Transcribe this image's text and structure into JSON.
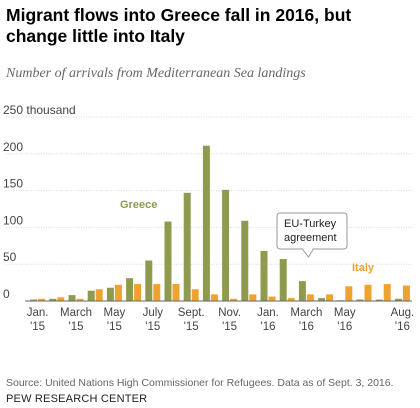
{
  "chart_data": {
    "type": "bar",
    "title": "Migrant flows into Greece fall in 2016, but change little into Italy",
    "subtitle": "Number of arrivals from Mediterranean Sea landings",
    "unit_label": "250 thousand",
    "ylim": [
      0,
      250
    ],
    "yticks": [
      0,
      50,
      100,
      150,
      200,
      250
    ],
    "ytick_labels": [
      "0",
      "50",
      "100",
      "150",
      "200",
      "250 thousand"
    ],
    "categories": [
      "Jan 2015",
      "Feb 2015",
      "Mar 2015",
      "Apr 2015",
      "May 2015",
      "Jun 2015",
      "Jul 2015",
      "Aug 2015",
      "Sep 2015",
      "Oct 2015",
      "Nov 2015",
      "Dec 2015",
      "Jan 2016",
      "Feb 2016",
      "Mar 2016",
      "Apr 2016",
      "May 2016",
      "Jun 2016",
      "Jul 2016",
      "Aug 2016"
    ],
    "x_tick_labels": [
      {
        "index": 0,
        "line1": "Jan.",
        "line2": "'15"
      },
      {
        "index": 2,
        "line1": "March",
        "line2": "'15"
      },
      {
        "index": 4,
        "line1": "May",
        "line2": "'15"
      },
      {
        "index": 6,
        "line1": "July",
        "line2": "'15"
      },
      {
        "index": 8,
        "line1": "Sept.",
        "line2": "'15"
      },
      {
        "index": 10,
        "line1": "Nov.",
        "line2": "'15"
      },
      {
        "index": 12,
        "line1": "Jan.",
        "line2": "'16"
      },
      {
        "index": 14,
        "line1": "March",
        "line2": "'16"
      },
      {
        "index": 16,
        "line1": "May",
        "line2": "'16"
      },
      {
        "index": 19,
        "line1": "Aug.",
        "line2": "'16"
      }
    ],
    "series": [
      {
        "name": "Greece",
        "color": "#8f9a4e",
        "values": [
          2,
          3,
          8,
          14,
          18,
          31,
          55,
          108,
          147,
          211,
          151,
          109,
          68,
          57,
          27,
          4,
          1,
          2,
          2,
          3
        ]
      },
      {
        "name": "Italy",
        "color": "#eea22f",
        "values": [
          3,
          5,
          3,
          16,
          22,
          23,
          23,
          23,
          16,
          9,
          3,
          9,
          6,
          4,
          9,
          9,
          20,
          22,
          23,
          21
        ]
      }
    ],
    "annotations": [
      {
        "text_lines": [
          "EU-Turkey",
          "agreement"
        ],
        "points_to_index": 14
      }
    ],
    "source": "Source: United Nations High Commissioner for Refugees. Data as of Sept. 3, 2016.",
    "organization": "PEW RESEARCH CENTER"
  }
}
